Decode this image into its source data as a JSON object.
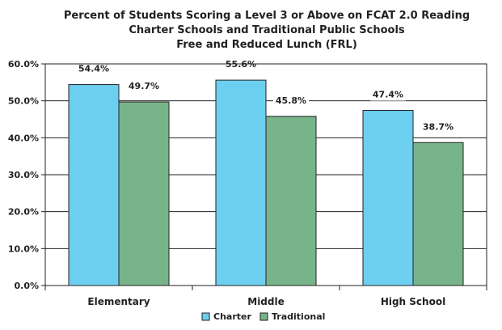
{
  "chart_data": {
    "type": "bar",
    "title_lines": [
      "Percent of Students Scoring a Level 3 or Above on FCAT 2.0 Reading",
      "Charter Schools and Traditional Public Schools",
      "Free and Reduced Lunch (FRL)"
    ],
    "categories": [
      "Elementary",
      "Middle",
      "High School"
    ],
    "series": [
      {
        "name": "Charter",
        "values": [
          54.4,
          55.6,
          47.4
        ],
        "labels": [
          "54.4%",
          "55.6%",
          "47.4%"
        ],
        "color": "#6dcff0"
      },
      {
        "name": "Traditional",
        "values": [
          49.7,
          45.8,
          38.7
        ],
        "labels": [
          "49.7%",
          "45.8%",
          "38.7%"
        ],
        "color": "#78b48a"
      }
    ],
    "yticks": [
      "0.0%",
      "10.0%",
      "20.0%",
      "30.0%",
      "40.0%",
      "50.0%",
      "60.0%"
    ],
    "ylim": [
      0,
      60
    ],
    "grid": true,
    "legend_position": "bottom"
  }
}
